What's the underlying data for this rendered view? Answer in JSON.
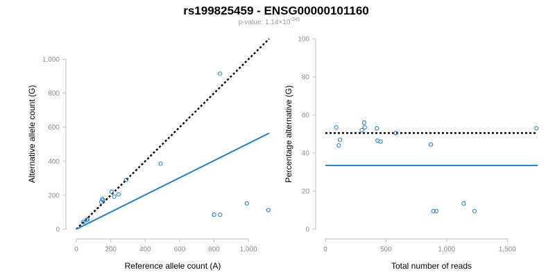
{
  "header": {
    "title": "rs199825459 - ENSG00000101160",
    "pvalue_prefix": "p-value: 1.14×10",
    "pvalue_exponent": "-245"
  },
  "colors": {
    "point": "#1a7fd4",
    "fit_line": "#1a7fd4",
    "reference_line": "#000000",
    "axis": "#bdbdbd"
  },
  "chart_data": [
    {
      "type": "scatter",
      "name": "allele-counts",
      "xlabel": "Reference allele count (A)",
      "ylabel": "Alternative allele count (G)",
      "xlim": [
        0,
        1120
      ],
      "ylim": [
        0,
        1120
      ],
      "x_ticks": [
        0,
        200,
        400,
        600,
        800,
        1000
      ],
      "x_tick_labels": [
        "0",
        "200",
        "400",
        "600",
        "800",
        "1,000"
      ],
      "y_ticks": [
        0,
        200,
        400,
        600,
        800,
        1000
      ],
      "y_tick_labels": [
        "0",
        "200",
        "400",
        "600",
        "800",
        "1,000"
      ],
      "points": [
        {
          "x": 40,
          "y": 42
        },
        {
          "x": 60,
          "y": 55
        },
        {
          "x": 65,
          "y": 58
        },
        {
          "x": 145,
          "y": 160
        },
        {
          "x": 150,
          "y": 178
        },
        {
          "x": 155,
          "y": 172
        },
        {
          "x": 205,
          "y": 220
        },
        {
          "x": 220,
          "y": 192
        },
        {
          "x": 245,
          "y": 205
        },
        {
          "x": 290,
          "y": 290
        },
        {
          "x": 490,
          "y": 385
        },
        {
          "x": 800,
          "y": 85
        },
        {
          "x": 835,
          "y": 85
        },
        {
          "x": 835,
          "y": 915
        },
        {
          "x": 990,
          "y": 152
        },
        {
          "x": 1115,
          "y": 112
        }
      ],
      "lines": [
        {
          "style": "dotted",
          "color_key": "reference_line",
          "x": [
            0,
            1120
          ],
          "y": [
            0,
            1120
          ]
        },
        {
          "style": "solid",
          "color_key": "fit_line",
          "x": [
            0,
            1120
          ],
          "y": [
            0,
            565
          ]
        }
      ],
      "grid": false
    },
    {
      "type": "scatter",
      "name": "percentage-alternative",
      "xlabel": "Total number of reads",
      "ylabel": "Percentage alternative (G)",
      "xlim": [
        0,
        1750
      ],
      "ylim": [
        0,
        100
      ],
      "x_ticks": [
        0,
        500,
        1000,
        1500
      ],
      "x_tick_labels": [
        "0",
        "500",
        "1,000",
        "1,500"
      ],
      "y_ticks": [
        0,
        20,
        40,
        60,
        80,
        100
      ],
      "y_tick_labels": [
        "0",
        "20",
        "40",
        "60",
        "80",
        "100"
      ],
      "points": [
        {
          "x": 90,
          "y": 53.5
        },
        {
          "x": 110,
          "y": 44
        },
        {
          "x": 120,
          "y": 47
        },
        {
          "x": 300,
          "y": 52
        },
        {
          "x": 320,
          "y": 56
        },
        {
          "x": 325,
          "y": 53.5
        },
        {
          "x": 425,
          "y": 53
        },
        {
          "x": 430,
          "y": 46.5
        },
        {
          "x": 455,
          "y": 46
        },
        {
          "x": 580,
          "y": 50.5
        },
        {
          "x": 870,
          "y": 44.5
        },
        {
          "x": 890,
          "y": 9.5
        },
        {
          "x": 915,
          "y": 9.5
        },
        {
          "x": 1140,
          "y": 13.5
        },
        {
          "x": 1230,
          "y": 9.5
        },
        {
          "x": 1740,
          "y": 53
        }
      ],
      "lines": [
        {
          "style": "dotted",
          "color_key": "reference_line",
          "x": [
            0,
            1750
          ],
          "y": [
            50.5,
            50.5
          ]
        },
        {
          "style": "solid",
          "color_key": "fit_line",
          "x": [
            0,
            1750
          ],
          "y": [
            33.5,
            33.5
          ]
        }
      ],
      "grid": false
    }
  ]
}
